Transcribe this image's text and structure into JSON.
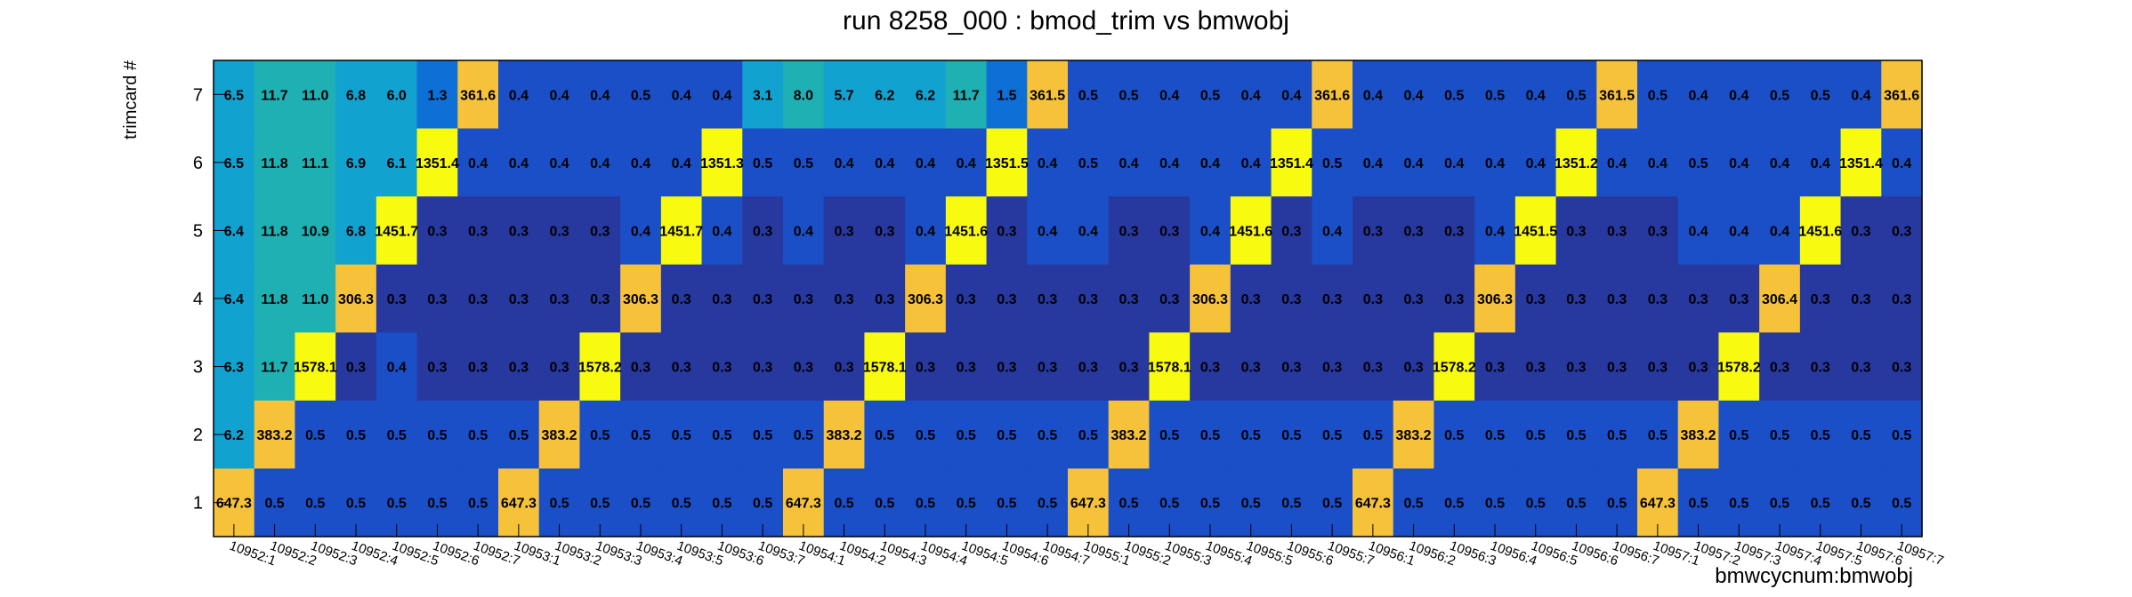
{
  "chart_data": {
    "type": "heatmap",
    "title": "run 8258_000 : bmod_trim vs bmwobj",
    "xlabel": "bmwcycnum:bmwobj",
    "ylabel": "trimcard #",
    "y_categories": [
      "1",
      "2",
      "3",
      "4",
      "5",
      "6",
      "7"
    ],
    "x_categories": [
      "10952:1",
      "10952:2",
      "10952:3",
      "10952:4",
      "10952:5",
      "10952:6",
      "10952:7",
      "10953:1",
      "10953:2",
      "10953:3",
      "10953:4",
      "10953:5",
      "10953:6",
      "10953:7",
      "10954:1",
      "10954:2",
      "10954:3",
      "10954:4",
      "10954:5",
      "10954:6",
      "10954:7",
      "10955:1",
      "10955:2",
      "10955:3",
      "10955:4",
      "10955:5",
      "10955:6",
      "10955:7",
      "10956:1",
      "10956:2",
      "10956:3",
      "10956:4",
      "10956:5",
      "10956:6",
      "10956:7",
      "10957:1",
      "10957:2",
      "10957:3",
      "10957:4",
      "10957:5",
      "10957:6",
      "10957:7"
    ],
    "rows": [
      {
        "y": "7",
        "values": [
          "6.5",
          "11.7",
          "11.0",
          "6.8",
          "6.0",
          "1.3",
          "361.6",
          "0.4",
          "0.4",
          "0.4",
          "0.5",
          "0.4",
          "0.4",
          "3.1",
          "8.0",
          "5.7",
          "6.2",
          "6.2",
          "11.7",
          "1.5",
          "361.5",
          "0.5",
          "0.5",
          "0.4",
          "0.5",
          "0.4",
          "0.4",
          "361.6",
          "0.4",
          "0.4",
          "0.5",
          "0.5",
          "0.4",
          "0.5",
          "361.5",
          "0.5",
          "0.4",
          "0.4",
          "0.5",
          "0.5",
          "0.4",
          "361.6"
        ]
      },
      {
        "y": "6",
        "values": [
          "6.5",
          "11.8",
          "11.1",
          "6.9",
          "6.1",
          "1351.4",
          "0.4",
          "0.4",
          "0.4",
          "0.4",
          "0.4",
          "0.4",
          "1351.3",
          "0.5",
          "0.5",
          "0.4",
          "0.4",
          "0.4",
          "0.4",
          "1351.5",
          "0.4",
          "0.5",
          "0.4",
          "0.4",
          "0.4",
          "0.4",
          "1351.4",
          "0.5",
          "0.4",
          "0.4",
          "0.4",
          "0.4",
          "0.4",
          "1351.2",
          "0.4",
          "0.4",
          "0.5",
          "0.4",
          "0.4",
          "0.4",
          "1351.4",
          "0.4"
        ]
      },
      {
        "y": "5",
        "values": [
          "6.4",
          "11.8",
          "10.9",
          "6.8",
          "1451.7",
          "0.3",
          "0.3",
          "0.3",
          "0.3",
          "0.3",
          "0.4",
          "1451.7",
          "0.4",
          "0.3",
          "0.4",
          "0.3",
          "0.3",
          "0.4",
          "1451.6",
          "0.3",
          "0.4",
          "0.4",
          "0.3",
          "0.3",
          "0.4",
          "1451.6",
          "0.3",
          "0.4",
          "0.3",
          "0.3",
          "0.3",
          "0.4",
          "1451.5",
          "0.3",
          "0.3",
          "0.3",
          "0.4",
          "0.4",
          "0.4",
          "1451.6",
          "0.3",
          "0.3"
        ]
      },
      {
        "y": "4",
        "values": [
          "6.4",
          "11.8",
          "11.0",
          "306.3",
          "0.3",
          "0.3",
          "0.3",
          "0.3",
          "0.3",
          "0.3",
          "306.3",
          "0.3",
          "0.3",
          "0.3",
          "0.3",
          "0.3",
          "0.3",
          "306.3",
          "0.3",
          "0.3",
          "0.3",
          "0.3",
          "0.3",
          "0.3",
          "306.3",
          "0.3",
          "0.3",
          "0.3",
          "0.3",
          "0.3",
          "0.3",
          "306.3",
          "0.3",
          "0.3",
          "0.3",
          "0.3",
          "0.3",
          "0.3",
          "306.4",
          "0.3",
          "0.3",
          "0.3"
        ]
      },
      {
        "y": "3",
        "values": [
          "6.3",
          "11.7",
          "1578.1",
          "0.3",
          "0.4",
          "0.3",
          "0.3",
          "0.3",
          "0.3",
          "1578.2",
          "0.3",
          "0.3",
          "0.3",
          "0.3",
          "0.3",
          "0.3",
          "1578.1",
          "0.3",
          "0.3",
          "0.3",
          "0.3",
          "0.3",
          "0.3",
          "1578.1",
          "0.3",
          "0.3",
          "0.3",
          "0.3",
          "0.3",
          "0.3",
          "1578.2",
          "0.3",
          "0.3",
          "0.3",
          "0.3",
          "0.3",
          "0.3",
          "1578.2",
          "0.3",
          "0.3",
          "0.3",
          "0.3"
        ]
      },
      {
        "y": "2",
        "values": [
          "6.2",
          "383.2",
          "0.5",
          "0.5",
          "0.5",
          "0.5",
          "0.5",
          "0.5",
          "383.2",
          "0.5",
          "0.5",
          "0.5",
          "0.5",
          "0.5",
          "0.5",
          "383.2",
          "0.5",
          "0.5",
          "0.5",
          "0.5",
          "0.5",
          "0.5",
          "383.2",
          "0.5",
          "0.5",
          "0.5",
          "0.5",
          "0.5",
          "0.5",
          "383.2",
          "0.5",
          "0.5",
          "0.5",
          "0.5",
          "0.5",
          "0.5",
          "383.2",
          "0.5",
          "0.5",
          "0.5",
          "0.5",
          "0.5"
        ]
      },
      {
        "y": "1",
        "values": [
          "647.3",
          "0.5",
          "0.5",
          "0.5",
          "0.5",
          "0.5",
          "0.5",
          "647.3",
          "0.5",
          "0.5",
          "0.5",
          "0.5",
          "0.5",
          "0.5",
          "647.3",
          "0.5",
          "0.5",
          "0.5",
          "0.5",
          "0.5",
          "0.5",
          "647.3",
          "0.5",
          "0.5",
          "0.5",
          "0.5",
          "0.5",
          "0.5",
          "647.3",
          "0.5",
          "0.5",
          "0.5",
          "0.5",
          "0.5",
          "0.5",
          "647.3",
          "0.5",
          "0.5",
          "0.5",
          "0.5",
          "0.5",
          "0.5"
        ]
      }
    ],
    "colors": {
      "c0": "#27389e",
      "c1": "#1a4fc7",
      "c2": "#0e6fd6",
      "c3": "#12a2d0",
      "c4": "#1fb0b3",
      "c5": "#f5c23a",
      "c6": "#f8fa0f"
    }
  }
}
